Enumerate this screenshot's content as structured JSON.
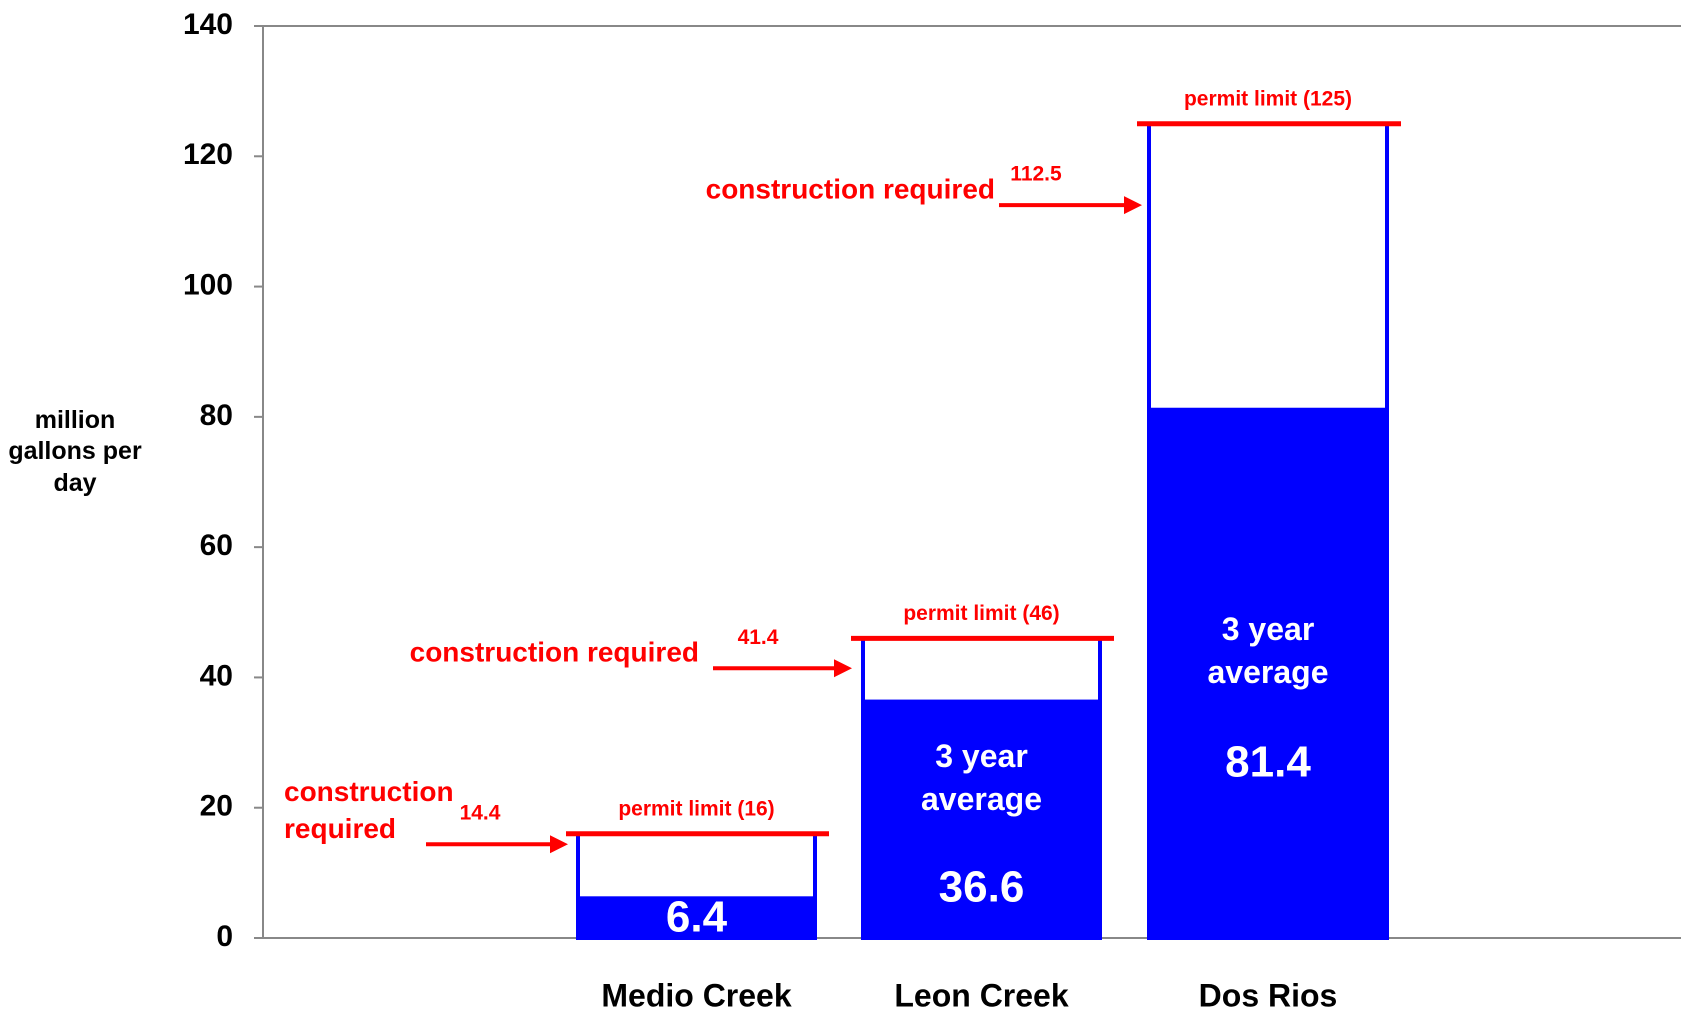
{
  "chart_data": {
    "type": "bar",
    "y_label": "million gallons per day",
    "categories": [
      "Medio Creek",
      "Leon Creek",
      "Dos Rios"
    ],
    "series": [
      {
        "name": "3 year average",
        "color": "#0000ff",
        "values": [
          6.4,
          36.6,
          81.4
        ]
      },
      {
        "name": "permit limit",
        "color": "#ff0000",
        "values": [
          16,
          46,
          125
        ],
        "value_labels": [
          "permit limit (16)",
          "permit limit (46)",
          "permit limit (125)"
        ]
      },
      {
        "name": "construction required",
        "color": "#ff0000",
        "values": [
          14.4,
          41.4,
          112.5
        ]
      }
    ],
    "ylim": [
      0,
      140
    ],
    "yticks": [
      0,
      20,
      40,
      60,
      80,
      100,
      120,
      140
    ]
  }
}
